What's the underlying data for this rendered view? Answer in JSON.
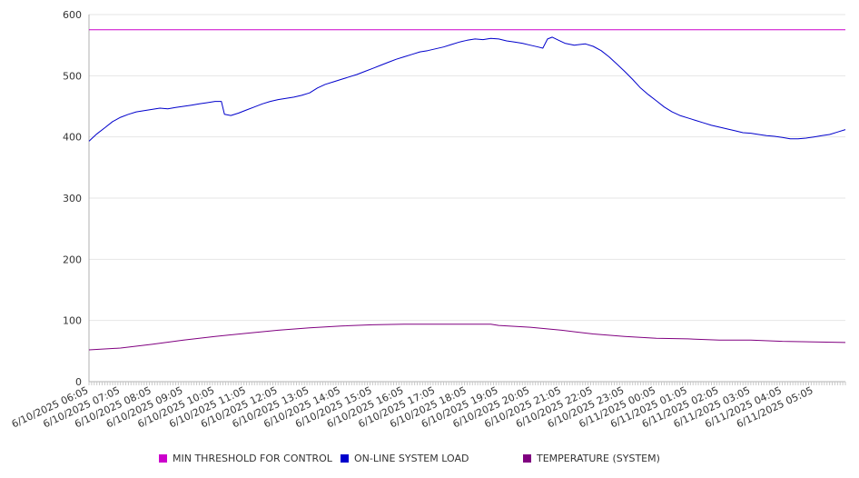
{
  "chart_data": {
    "type": "line",
    "title": "",
    "xlabel": "",
    "ylabel": "",
    "ylim": [
      0,
      600
    ],
    "y_ticks": [
      0,
      100,
      200,
      300,
      400,
      500,
      600
    ],
    "grid": true,
    "legend_position": "bottom",
    "x_tick_labels": [
      "6/10/2025 06:05",
      "6/10/2025 07:05",
      "6/10/2025 08:05",
      "6/10/2025 09:05",
      "6/10/2025 10:05",
      "6/10/2025 11:05",
      "6/10/2025 12:05",
      "6/10/2025 13:05",
      "6/10/2025 14:05",
      "6/10/2025 15:05",
      "6/10/2025 16:05",
      "6/10/2025 17:05",
      "6/10/2025 18:05",
      "6/10/2025 19:05",
      "6/10/2025 20:05",
      "6/10/2025 21:05",
      "6/10/2025 22:05",
      "6/10/2025 23:05",
      "6/11/2025 00:05",
      "6/11/2025 01:05",
      "6/11/2025 02:05",
      "6/11/2025 03:05",
      "6/11/2025 04:05",
      "6/11/2025 05:05"
    ],
    "x_hours_span": [
      0,
      24
    ],
    "series": [
      {
        "name": "MIN THRESHOLD FOR CONTROL",
        "color": "#cc00cc",
        "points": [
          [
            0,
            575
          ],
          [
            24,
            575
          ]
        ]
      },
      {
        "name": "ON-LINE SYSTEM LOAD",
        "color": "#0000cc",
        "points": [
          [
            0,
            393
          ],
          [
            0.25,
            405
          ],
          [
            0.5,
            415
          ],
          [
            0.75,
            425
          ],
          [
            1.0,
            432
          ],
          [
            1.25,
            437
          ],
          [
            1.5,
            441
          ],
          [
            1.75,
            443
          ],
          [
            2.0,
            445
          ],
          [
            2.25,
            447
          ],
          [
            2.5,
            446
          ],
          [
            2.75,
            448
          ],
          [
            3.0,
            450
          ],
          [
            3.25,
            452
          ],
          [
            3.5,
            454
          ],
          [
            3.75,
            456
          ],
          [
            4.0,
            458
          ],
          [
            4.2,
            458
          ],
          [
            4.3,
            437
          ],
          [
            4.5,
            435
          ],
          [
            4.75,
            439
          ],
          [
            5.0,
            444
          ],
          [
            5.25,
            449
          ],
          [
            5.5,
            454
          ],
          [
            5.75,
            458
          ],
          [
            6.0,
            461
          ],
          [
            6.25,
            463
          ],
          [
            6.5,
            465
          ],
          [
            6.75,
            468
          ],
          [
            7.0,
            472
          ],
          [
            7.25,
            480
          ],
          [
            7.5,
            486
          ],
          [
            7.75,
            490
          ],
          [
            8.0,
            494
          ],
          [
            8.25,
            498
          ],
          [
            8.5,
            502
          ],
          [
            8.75,
            507
          ],
          [
            9.0,
            512
          ],
          [
            9.25,
            517
          ],
          [
            9.5,
            522
          ],
          [
            9.75,
            527
          ],
          [
            10.0,
            531
          ],
          [
            10.25,
            535
          ],
          [
            10.5,
            539
          ],
          [
            10.75,
            541
          ],
          [
            11.0,
            544
          ],
          [
            11.25,
            547
          ],
          [
            11.5,
            551
          ],
          [
            11.75,
            555
          ],
          [
            12.0,
            558
          ],
          [
            12.25,
            560
          ],
          [
            12.5,
            559
          ],
          [
            12.75,
            561
          ],
          [
            13.0,
            560
          ],
          [
            13.25,
            557
          ],
          [
            13.5,
            555
          ],
          [
            13.75,
            553
          ],
          [
            14.0,
            550
          ],
          [
            14.25,
            547
          ],
          [
            14.4,
            545
          ],
          [
            14.55,
            560
          ],
          [
            14.7,
            563
          ],
          [
            14.9,
            558
          ],
          [
            15.1,
            553
          ],
          [
            15.4,
            550
          ],
          [
            15.75,
            552
          ],
          [
            16.0,
            548
          ],
          [
            16.25,
            541
          ],
          [
            16.5,
            531
          ],
          [
            16.75,
            519
          ],
          [
            17.0,
            507
          ],
          [
            17.25,
            494
          ],
          [
            17.5,
            480
          ],
          [
            17.75,
            469
          ],
          [
            18.0,
            459
          ],
          [
            18.25,
            449
          ],
          [
            18.5,
            441
          ],
          [
            18.75,
            435
          ],
          [
            19.0,
            431
          ],
          [
            19.25,
            427
          ],
          [
            19.5,
            423
          ],
          [
            19.75,
            419
          ],
          [
            20.0,
            416
          ],
          [
            20.25,
            413
          ],
          [
            20.5,
            410
          ],
          [
            20.75,
            407
          ],
          [
            21.0,
            406
          ],
          [
            21.25,
            404
          ],
          [
            21.5,
            402
          ],
          [
            21.75,
            401
          ],
          [
            22.0,
            399
          ],
          [
            22.25,
            397
          ],
          [
            22.5,
            397
          ],
          [
            22.75,
            398
          ],
          [
            23.0,
            400
          ],
          [
            23.25,
            402
          ],
          [
            23.5,
            404
          ],
          [
            23.75,
            408
          ],
          [
            24.0,
            412
          ]
        ]
      },
      {
        "name": "TEMPERATURE (SYSTEM)",
        "color": "#800080",
        "points": [
          [
            0,
            52
          ],
          [
            1,
            55
          ],
          [
            2,
            61
          ],
          [
            3,
            68
          ],
          [
            4,
            74
          ],
          [
            5,
            79
          ],
          [
            6,
            84
          ],
          [
            7,
            88
          ],
          [
            8,
            91
          ],
          [
            9,
            93
          ],
          [
            10,
            94
          ],
          [
            11,
            94
          ],
          [
            12,
            94
          ],
          [
            12.75,
            94
          ],
          [
            13,
            92
          ],
          [
            14,
            89
          ],
          [
            15,
            84
          ],
          [
            16,
            78
          ],
          [
            17,
            74
          ],
          [
            18,
            71
          ],
          [
            19,
            70
          ],
          [
            20,
            68
          ],
          [
            21,
            68
          ],
          [
            22,
            66
          ],
          [
            23,
            65
          ],
          [
            24,
            64
          ]
        ]
      }
    ]
  }
}
